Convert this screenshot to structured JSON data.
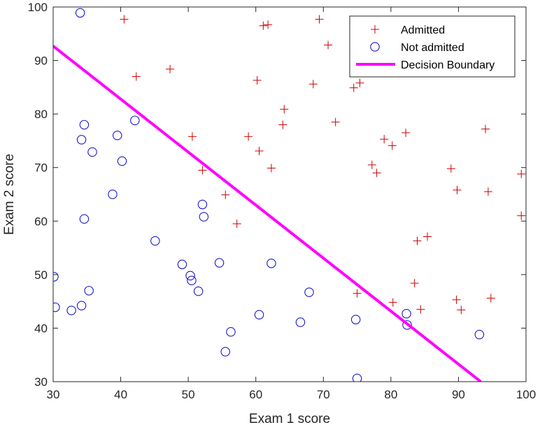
{
  "chart_data": {
    "type": "scatter",
    "title": "",
    "xlabel": "Exam 1 score",
    "ylabel": "Exam 2 score",
    "xlim": [
      30,
      100
    ],
    "ylim": [
      30,
      100
    ],
    "xticks": [
      "30",
      "40",
      "50",
      "60",
      "70",
      "80",
      "90",
      "100"
    ],
    "yticks": [
      "30",
      "40",
      "50",
      "60",
      "70",
      "80",
      "90",
      "100"
    ],
    "grid": false,
    "legend_position": "top-right",
    "series": [
      {
        "name": "Admitted",
        "marker": "plus",
        "color": "#cc0000",
        "points": [
          [
            40.5,
            97.7
          ],
          [
            42.3,
            87.0
          ],
          [
            47.3,
            88.4
          ],
          [
            50.6,
            75.8
          ],
          [
            52.1,
            69.5
          ],
          [
            55.5,
            64.9
          ],
          [
            57.2,
            59.5
          ],
          [
            58.9,
            75.8
          ],
          [
            60.2,
            86.3
          ],
          [
            60.5,
            73.1
          ],
          [
            61.1,
            96.5
          ],
          [
            61.8,
            96.7
          ],
          [
            62.3,
            69.9
          ],
          [
            64.0,
            78.0
          ],
          [
            64.2,
            80.9
          ],
          [
            68.5,
            85.6
          ],
          [
            69.4,
            97.7
          ],
          [
            70.7,
            92.9
          ],
          [
            71.8,
            78.5
          ],
          [
            74.5,
            84.9
          ],
          [
            75.0,
            46.5
          ],
          [
            75.4,
            85.8
          ],
          [
            77.2,
            70.5
          ],
          [
            77.9,
            69.0
          ],
          [
            79.0,
            75.3
          ],
          [
            80.2,
            74.1
          ],
          [
            80.3,
            44.8
          ],
          [
            82.2,
            76.5
          ],
          [
            83.5,
            48.4
          ],
          [
            83.9,
            56.3
          ],
          [
            84.4,
            43.5
          ],
          [
            85.4,
            57.1
          ],
          [
            88.9,
            69.8
          ],
          [
            89.7,
            45.3
          ],
          [
            89.8,
            65.8
          ],
          [
            90.4,
            43.4
          ],
          [
            94.0,
            77.2
          ],
          [
            94.4,
            65.5
          ],
          [
            94.8,
            45.6
          ],
          [
            99.3,
            68.8
          ],
          [
            99.3,
            61.0
          ]
        ]
      },
      {
        "name": "Not admitted",
        "marker": "circle",
        "color": "#1a1acc",
        "points": [
          [
            34.0,
            98.9
          ],
          [
            30.3,
            43.9
          ],
          [
            30.1,
            49.6
          ],
          [
            32.7,
            43.3
          ],
          [
            34.2,
            44.2
          ],
          [
            34.2,
            75.2
          ],
          [
            34.6,
            78.0
          ],
          [
            34.6,
            60.4
          ],
          [
            35.3,
            47.0
          ],
          [
            35.8,
            72.9
          ],
          [
            38.8,
            65.0
          ],
          [
            39.5,
            76.0
          ],
          [
            40.2,
            71.2
          ],
          [
            42.1,
            78.8
          ],
          [
            45.1,
            56.3
          ],
          [
            49.1,
            51.9
          ],
          [
            50.3,
            49.8
          ],
          [
            50.5,
            48.9
          ],
          [
            51.5,
            46.9
          ],
          [
            52.1,
            63.1
          ],
          [
            52.3,
            60.8
          ],
          [
            54.6,
            52.2
          ],
          [
            55.5,
            35.6
          ],
          [
            56.3,
            39.3
          ],
          [
            60.5,
            42.5
          ],
          [
            62.3,
            52.1
          ],
          [
            66.6,
            41.1
          ],
          [
            67.9,
            46.7
          ],
          [
            74.8,
            41.6
          ],
          [
            75.0,
            30.6
          ],
          [
            82.3,
            42.7
          ],
          [
            82.4,
            40.6
          ],
          [
            93.1,
            38.8
          ]
        ]
      },
      {
        "name": "Decision Boundary",
        "type": "line",
        "color": "#ff00ff",
        "points": [
          [
            30,
            92.7
          ],
          [
            93.3,
            30
          ]
        ]
      }
    ]
  }
}
